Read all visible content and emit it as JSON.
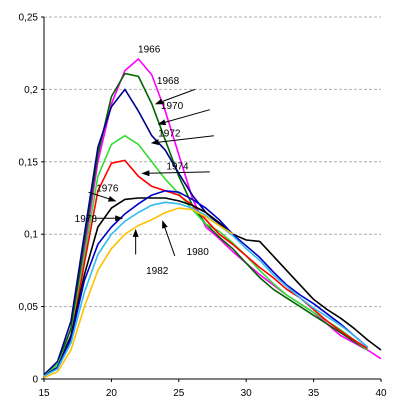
{
  "chart_data": {
    "type": "line",
    "title": "",
    "xlabel": "",
    "ylabel": "",
    "xlim": [
      15,
      40
    ],
    "ylim": [
      0,
      0.25
    ],
    "x_ticks": [
      {
        "value": 15,
        "label": "15"
      },
      {
        "value": 20,
        "label": "20"
      },
      {
        "value": 25,
        "label": "25"
      },
      {
        "value": 30,
        "label": "30"
      },
      {
        "value": 35,
        "label": "35"
      },
      {
        "value": 40,
        "label": "40"
      }
    ],
    "y_ticks": [
      {
        "value": 0,
        "label": "0"
      },
      {
        "value": 0.05,
        "label": "0,05"
      },
      {
        "value": 0.1,
        "label": "0,1"
      },
      {
        "value": 0.15,
        "label": "0,15"
      },
      {
        "value": 0.2,
        "label": "0,2"
      },
      {
        "value": 0.25,
        "label": "0,25"
      }
    ],
    "grid": "horizontal dashed",
    "legend": "none (series labelled by arrows on the plot)",
    "series": [
      {
        "name": "1966",
        "color": "#ff00ff",
        "points": [
          [
            15,
            0.003
          ],
          [
            16,
            0.01
          ],
          [
            17,
            0.035
          ],
          [
            18,
            0.09
          ],
          [
            19,
            0.15
          ],
          [
            20,
            0.19
          ],
          [
            21,
            0.213
          ],
          [
            22,
            0.221
          ],
          [
            23,
            0.21
          ],
          [
            24,
            0.185
          ],
          [
            25,
            0.155
          ],
          [
            26,
            0.125
          ],
          [
            27,
            0.105
          ],
          [
            28,
            0.097
          ],
          [
            29,
            0.088
          ],
          [
            30,
            0.08
          ],
          [
            31,
            0.072
          ],
          [
            32,
            0.065
          ],
          [
            33,
            0.058
          ],
          [
            34,
            0.052
          ],
          [
            35,
            0.046
          ],
          [
            36,
            0.038
          ],
          [
            37,
            0.03
          ],
          [
            38,
            0.025
          ],
          [
            39,
            0.02
          ],
          [
            40,
            0.014
          ]
        ]
      },
      {
        "name": "1968",
        "color": "#006400",
        "points": [
          [
            15,
            0.003
          ],
          [
            16,
            0.01
          ],
          [
            17,
            0.035
          ],
          [
            18,
            0.095
          ],
          [
            19,
            0.155
          ],
          [
            20,
            0.195
          ],
          [
            21,
            0.211
          ],
          [
            22,
            0.209
          ],
          [
            23,
            0.19
          ],
          [
            24,
            0.165
          ],
          [
            25,
            0.14
          ],
          [
            26,
            0.12
          ],
          [
            27,
            0.107
          ],
          [
            28,
            0.098
          ],
          [
            29,
            0.09
          ],
          [
            30,
            0.08
          ],
          [
            31,
            0.07
          ],
          [
            32,
            0.062
          ],
          [
            33,
            0.056
          ],
          [
            34,
            0.05
          ],
          [
            35,
            0.044
          ],
          [
            36,
            0.038
          ],
          [
            37,
            0.032
          ],
          [
            38,
            0.026
          ],
          [
            39,
            0.02
          ]
        ]
      },
      {
        "name": "1970",
        "color": "#00008b",
        "points": [
          [
            15,
            0.003
          ],
          [
            16,
            0.012
          ],
          [
            17,
            0.04
          ],
          [
            18,
            0.1
          ],
          [
            19,
            0.16
          ],
          [
            20,
            0.188
          ],
          [
            21,
            0.2
          ],
          [
            22,
            0.185
          ],
          [
            23,
            0.168
          ],
          [
            24,
            0.158
          ],
          [
            25,
            0.142
          ],
          [
            26,
            0.127
          ],
          [
            27,
            0.115
          ],
          [
            28,
            0.107
          ],
          [
            29,
            0.1
          ]
        ]
      },
      {
        "name": "1972",
        "color": "#33dd33",
        "points": [
          [
            15,
            0.002
          ],
          [
            16,
            0.01
          ],
          [
            17,
            0.03
          ],
          [
            18,
            0.085
          ],
          [
            19,
            0.14
          ],
          [
            20,
            0.162
          ],
          [
            21,
            0.168
          ],
          [
            22,
            0.162
          ],
          [
            23,
            0.15
          ],
          [
            24,
            0.138
          ],
          [
            25,
            0.128
          ],
          [
            26,
            0.117
          ],
          [
            27,
            0.107
          ],
          [
            28,
            0.102
          ],
          [
            29,
            0.094
          ],
          [
            30,
            0.085
          ],
          [
            31,
            0.075
          ],
          [
            32,
            0.066
          ],
          [
            33,
            0.058
          ],
          [
            34,
            0.052
          ],
          [
            35,
            0.046
          ],
          [
            36,
            0.04
          ],
          [
            37,
            0.034
          ],
          [
            38,
            0.027
          ],
          [
            39,
            0.02
          ]
        ]
      },
      {
        "name": "1974",
        "color": "#ff0000",
        "points": [
          [
            15,
            0.002
          ],
          [
            16,
            0.008
          ],
          [
            17,
            0.028
          ],
          [
            18,
            0.08
          ],
          [
            19,
            0.13
          ],
          [
            20,
            0.149
          ],
          [
            21,
            0.151
          ],
          [
            22,
            0.14
          ],
          [
            23,
            0.133
          ],
          [
            24,
            0.13
          ],
          [
            25,
            0.127
          ],
          [
            26,
            0.12
          ],
          [
            27,
            0.11
          ],
          [
            28,
            0.1
          ],
          [
            29,
            0.093
          ],
          [
            30,
            0.085
          ],
          [
            31,
            0.077
          ],
          [
            32,
            0.07
          ],
          [
            33,
            0.062
          ],
          [
            34,
            0.056
          ],
          [
            35,
            0.048
          ],
          [
            36,
            0.04
          ],
          [
            37,
            0.033
          ],
          [
            38,
            0.027
          ],
          [
            39,
            0.021
          ]
        ]
      },
      {
        "name": "1976",
        "color": "#000000",
        "points": [
          [
            15,
            0.002
          ],
          [
            16,
            0.008
          ],
          [
            17,
            0.03
          ],
          [
            18,
            0.072
          ],
          [
            19,
            0.105
          ],
          [
            20,
            0.118
          ],
          [
            21,
            0.124
          ],
          [
            22,
            0.125
          ],
          [
            23,
            0.125
          ],
          [
            24,
            0.125
          ],
          [
            25,
            0.123
          ],
          [
            26,
            0.12
          ],
          [
            27,
            0.115
          ],
          [
            28,
            0.108
          ],
          [
            29,
            0.1
          ],
          [
            30,
            0.096
          ],
          [
            31,
            0.095
          ],
          [
            32,
            0.085
          ],
          [
            33,
            0.075
          ],
          [
            34,
            0.065
          ],
          [
            35,
            0.055
          ],
          [
            36,
            0.048
          ],
          [
            37,
            0.042
          ],
          [
            38,
            0.035
          ],
          [
            39,
            0.027
          ],
          [
            40,
            0.02
          ]
        ]
      },
      {
        "name": "1978",
        "color": "#0000cc",
        "points": [
          [
            15,
            0.002
          ],
          [
            16,
            0.008
          ],
          [
            17,
            0.028
          ],
          [
            18,
            0.068
          ],
          [
            19,
            0.093
          ],
          [
            20,
            0.105
          ],
          [
            21,
            0.114
          ],
          [
            22,
            0.121
          ],
          [
            23,
            0.127
          ],
          [
            24,
            0.13
          ],
          [
            25,
            0.129
          ],
          [
            26,
            0.124
          ],
          [
            27,
            0.118
          ],
          [
            28,
            0.11
          ],
          [
            29,
            0.1
          ],
          [
            30,
            0.092
          ],
          [
            31,
            0.084
          ],
          [
            32,
            0.074
          ],
          [
            33,
            0.065
          ],
          [
            34,
            0.058
          ],
          [
            35,
            0.052
          ],
          [
            36,
            0.045
          ],
          [
            37,
            0.038
          ],
          [
            38,
            0.03
          ],
          [
            39,
            0.022
          ]
        ]
      },
      {
        "name": "1980",
        "color": "#33bbee",
        "points": [
          [
            15,
            0.002
          ],
          [
            16,
            0.007
          ],
          [
            17,
            0.025
          ],
          [
            18,
            0.06
          ],
          [
            19,
            0.086
          ],
          [
            20,
            0.1
          ],
          [
            21,
            0.109
          ],
          [
            22,
            0.115
          ],
          [
            23,
            0.12
          ],
          [
            24,
            0.122
          ],
          [
            25,
            0.121
          ],
          [
            26,
            0.118
          ],
          [
            27,
            0.113
          ],
          [
            28,
            0.106
          ],
          [
            29,
            0.099
          ],
          [
            30,
            0.09
          ],
          [
            31,
            0.082
          ],
          [
            32,
            0.072
          ],
          [
            33,
            0.064
          ],
          [
            34,
            0.056
          ],
          [
            35,
            0.049
          ],
          [
            36,
            0.043
          ],
          [
            37,
            0.037
          ],
          [
            38,
            0.03
          ],
          [
            39,
            0.022
          ]
        ]
      },
      {
        "name": "1982",
        "color": "#ffc000",
        "points": [
          [
            15,
            0.001
          ],
          [
            16,
            0.005
          ],
          [
            17,
            0.02
          ],
          [
            18,
            0.05
          ],
          [
            19,
            0.075
          ],
          [
            20,
            0.09
          ],
          [
            21,
            0.1
          ],
          [
            22,
            0.106
          ],
          [
            23,
            0.11
          ],
          [
            24,
            0.115
          ],
          [
            25,
            0.118
          ],
          [
            26,
            0.117
          ],
          [
            27,
            0.112
          ],
          [
            28,
            0.106
          ],
          [
            29,
            0.1
          ]
        ]
      }
    ],
    "annotations": [
      {
        "text": "1966",
        "x": 22.8,
        "y": 0.228
      },
      {
        "text": "1968",
        "x": 24.2,
        "y": 0.206
      },
      {
        "text": "1970",
        "x": 24.5,
        "y": 0.189
      },
      {
        "text": "1972",
        "x": 24.3,
        "y": 0.17
      },
      {
        "text": "1974",
        "x": 24.9,
        "y": 0.147
      },
      {
        "text": "1976",
        "x": 19.7,
        "y": 0.132
      },
      {
        "text": "1978",
        "x": 18.1,
        "y": 0.111
      },
      {
        "text": "1980",
        "x": 26.4,
        "y": 0.088
      },
      {
        "text": "1982",
        "x": 23.4,
        "y": 0.075
      }
    ],
    "arrows": [
      {
        "from": [
          26.2,
          0.2
        ],
        "to": [
          23.3,
          0.19
        ]
      },
      {
        "from": [
          27.3,
          0.186
        ],
        "to": [
          23.5,
          0.176
        ]
      },
      {
        "from": [
          27.6,
          0.168
        ],
        "to": [
          23.0,
          0.163
        ]
      },
      {
        "from": [
          27.3,
          0.143
        ],
        "to": [
          22.3,
          0.142
        ]
      },
      {
        "from": [
          18.3,
          0.129
        ],
        "to": [
          20.3,
          0.123
        ]
      },
      {
        "from": [
          18.8,
          0.111
        ],
        "to": [
          20.8,
          0.111
        ]
      },
      {
        "from": [
          24.7,
          0.085
        ],
        "to": [
          23.8,
          0.109
        ]
      },
      {
        "from": [
          21.8,
          0.086
        ],
        "to": [
          21.8,
          0.103
        ]
      }
    ]
  }
}
